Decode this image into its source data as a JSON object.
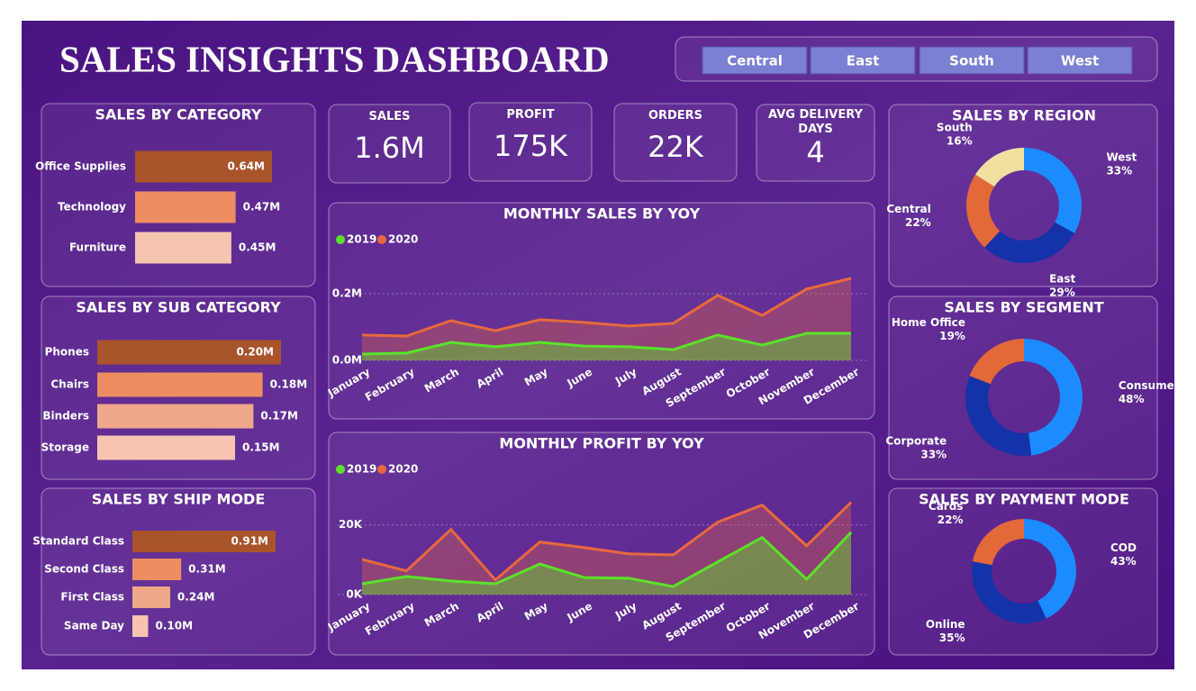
{
  "header": {
    "title": "SALES INSIGHTS DASHBOARD"
  },
  "filters": [
    "Central",
    "East",
    "South",
    "West"
  ],
  "kpis": [
    {
      "label": "SALES",
      "value": "1.6M"
    },
    {
      "label": "PROFIT",
      "value": "175K"
    },
    {
      "label": "ORDERS",
      "value": "22K"
    },
    {
      "label": "AVG DELIVERY DAYS",
      "value": "4"
    }
  ],
  "chart_data": [
    {
      "type": "bar",
      "orientation": "horizontal",
      "title": "SALES BY CATEGORY",
      "categories": [
        "Office Supplies",
        "Technology",
        "Furniture"
      ],
      "values": [
        0.64,
        0.47,
        0.45
      ],
      "value_labels": [
        "0.64M",
        "0.47M",
        "0.45M"
      ],
      "colors": [
        "#a9542a",
        "#ec8e62",
        "#f5c5b0"
      ]
    },
    {
      "type": "bar",
      "orientation": "horizontal",
      "title": "SALES BY SUB CATEGORY",
      "categories": [
        "Phones",
        "Chairs",
        "Binders",
        "Storage"
      ],
      "values": [
        0.2,
        0.18,
        0.17,
        0.15
      ],
      "value_labels": [
        "0.20M",
        "0.18M",
        "0.17M",
        "0.15M"
      ],
      "colors": [
        "#a9542a",
        "#ec8e62",
        "#f0a888",
        "#f5c5b0"
      ]
    },
    {
      "type": "bar",
      "orientation": "horizontal",
      "title": "SALES BY SHIP MODE",
      "categories": [
        "Standard Class",
        "Second Class",
        "First Class",
        "Same Day"
      ],
      "values": [
        0.91,
        0.31,
        0.24,
        0.1
      ],
      "value_labels": [
        "0.91M",
        "0.31M",
        "0.24M",
        "0.10M"
      ],
      "colors": [
        "#a9542a",
        "#ec8e62",
        "#f0a888",
        "#f5c5b0"
      ]
    },
    {
      "type": "line",
      "area": true,
      "title": "MONTHLY SALES BY YOY",
      "categories": [
        "January",
        "February",
        "March",
        "April",
        "May",
        "June",
        "July",
        "August",
        "September",
        "October",
        "November",
        "December"
      ],
      "series": [
        {
          "name": "2019",
          "color": "#5ce12b",
          "values": [
            0.019,
            0.022,
            0.054,
            0.041,
            0.054,
            0.043,
            0.041,
            0.032,
            0.076,
            0.046,
            0.081,
            0.081
          ]
        },
        {
          "name": "2020",
          "color": "#e8693e",
          "values": [
            0.076,
            0.073,
            0.119,
            0.089,
            0.122,
            0.114,
            0.103,
            0.111,
            0.195,
            0.135,
            0.214,
            0.246
          ]
        }
      ],
      "ylim": [
        0,
        0.3
      ],
      "yticks": [
        {
          "value": 0,
          "label": "0.0M"
        },
        {
          "value": 0.2,
          "label": "0.2M"
        }
      ],
      "grid": true
    },
    {
      "type": "line",
      "area": true,
      "title": "MONTHLY PROFIT BY YOY",
      "categories": [
        "January",
        "February",
        "March",
        "April",
        "May",
        "June",
        "July",
        "August",
        "September",
        "October",
        "November",
        "December"
      ],
      "series": [
        {
          "name": "2019",
          "color": "#5ce12b",
          "values": [
            3.1,
            5.2,
            3.9,
            3.1,
            8.8,
            4.9,
            4.7,
            2.3,
            9.4,
            16.4,
            4.4,
            17.9
          ]
        },
        {
          "name": "2020",
          "color": "#e8693e",
          "values": [
            10.1,
            6.8,
            18.7,
            4.2,
            15.1,
            13.5,
            11.7,
            11.4,
            20.8,
            25.7,
            14.0,
            26.5
          ]
        }
      ],
      "ylim": [
        0,
        30
      ],
      "yticks": [
        {
          "value": 0,
          "label": "0K"
        },
        {
          "value": 20,
          "label": "20K"
        }
      ],
      "grid": true
    },
    {
      "type": "pie",
      "donut": true,
      "title": "SALES BY REGION",
      "categories": [
        "West",
        "East",
        "Central",
        "South"
      ],
      "values": [
        33,
        29,
        22,
        16
      ],
      "value_labels": [
        "33%",
        "29%",
        "22%",
        "16%"
      ],
      "colors": [
        "#1a8cff",
        "#1532a8",
        "#e3683a",
        "#efe0a0"
      ]
    },
    {
      "type": "pie",
      "donut": true,
      "title": "SALES BY SEGMENT",
      "categories": [
        "Consumer",
        "Corporate",
        "Home Office"
      ],
      "values": [
        48,
        33,
        19
      ],
      "value_labels": [
        "48%",
        "33%",
        "19%"
      ],
      "colors": [
        "#1a8cff",
        "#1532a8",
        "#e3683a"
      ]
    },
    {
      "type": "pie",
      "donut": true,
      "title": "SALES BY PAYMENT MODE",
      "categories": [
        "COD",
        "Online",
        "Cards"
      ],
      "values": [
        43,
        35,
        22
      ],
      "value_labels": [
        "43%",
        "35%",
        "22%"
      ],
      "colors": [
        "#1a8cff",
        "#1532a8",
        "#e3683a"
      ]
    }
  ]
}
